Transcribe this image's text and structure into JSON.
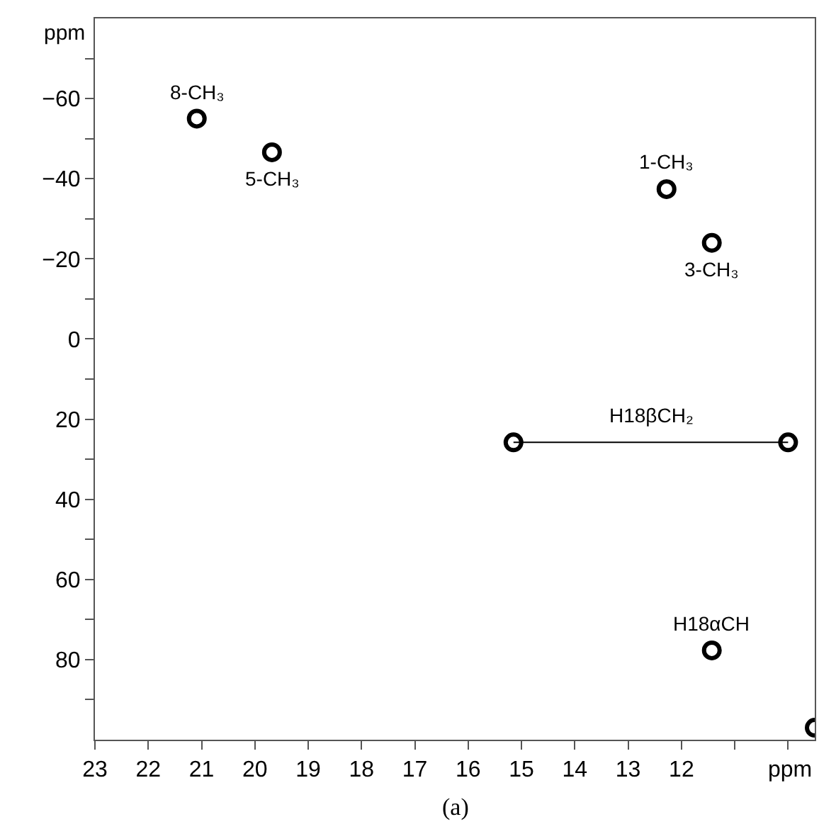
{
  "chart_data": {
    "type": "scatter",
    "xlabel": "ppm",
    "ylabel": "ppm",
    "xlim": [
      23,
      9.5
    ],
    "ylim": [
      100,
      -80
    ],
    "xticks": [
      23,
      22,
      21,
      20,
      19,
      18,
      17,
      16,
      15,
      14,
      13,
      12,
      {
        "value": 11,
        "label": null
      },
      {
        "value": 10,
        "label": null
      }
    ],
    "yticks": [
      {
        "value": -70,
        "label": null
      },
      -60,
      {
        "value": -50,
        "label": null
      },
      -40,
      {
        "value": -30,
        "label": null
      },
      -20,
      {
        "value": -10,
        "label": null
      },
      0,
      {
        "value": 10,
        "label": null
      },
      20,
      {
        "value": 30,
        "label": null
      },
      40,
      {
        "value": 50,
        "label": null
      },
      60,
      {
        "value": 70,
        "label": null
      },
      80,
      {
        "value": 90,
        "label": null
      }
    ],
    "series": [
      {
        "type": "line",
        "color": "#000000",
        "marker": "none",
        "x": [
          15.15,
          10.0
        ],
        "values": [
          25.8,
          25.8
        ]
      },
      {
        "color": "#000000",
        "marker": "circle",
        "x": [
          21.09,
          19.68,
          12.28,
          11.43,
          15.15,
          10.0,
          11.43,
          9.5
        ],
        "values": [
          -55,
          -46.6,
          -37.4,
          -24,
          25.8,
          25.8,
          77.7,
          97
        ]
      }
    ],
    "annotations": [
      {
        "text": "8-CH₃",
        "x": 21.09,
        "y": -55
      },
      {
        "text": "5-CH₃",
        "x": 19.68,
        "y": -46.6
      },
      {
        "text": "1-CH₃",
        "x": 12.28,
        "y": -37.4
      },
      {
        "text": "3-CH₃",
        "x": 11.43,
        "y": -24
      },
      {
        "text": "H18βCH₂",
        "x": 12.57,
        "y": 25.8
      },
      {
        "text": "H18αCH",
        "x": 11.43,
        "y": 77.7
      },
      "(a)"
    ]
  }
}
